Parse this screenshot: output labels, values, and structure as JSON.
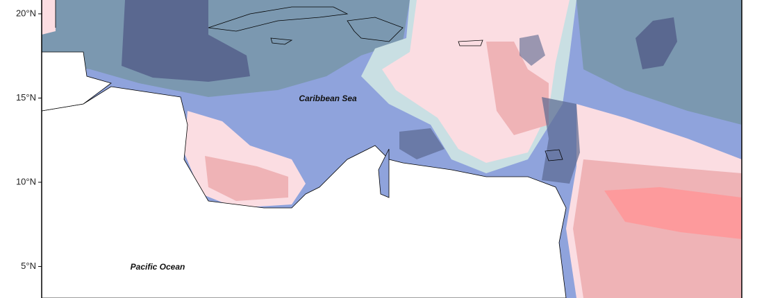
{
  "map": {
    "ylim": [
      3.13,
      20.82
    ],
    "lat_ticks": [
      {
        "value": 20,
        "label": "20°N"
      },
      {
        "value": 15,
        "label": "15°N"
      },
      {
        "value": 10,
        "label": "10°N"
      },
      {
        "value": 5,
        "label": "5°N"
      }
    ],
    "labels": {
      "sea": "Caribbean Sea",
      "ocean": "Pacific Ocean"
    }
  }
}
